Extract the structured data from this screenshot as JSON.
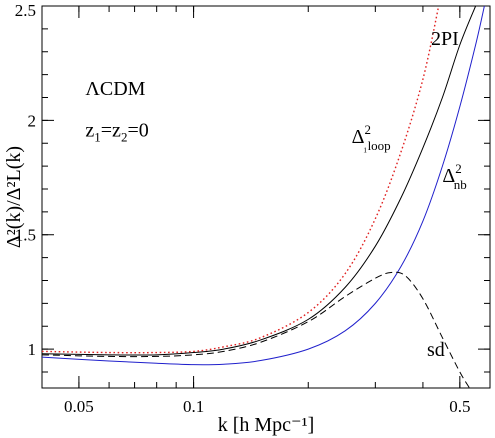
{
  "chart_data": {
    "type": "line",
    "title": "",
    "xlabel": "k [h Mpc⁻¹]",
    "ylabel": "Δ²(k)/Δ²L(k)",
    "xscale": "log",
    "xlim": [
      0.04,
      0.6
    ],
    "ylim": [
      0.83,
      2.5
    ],
    "grid": false,
    "legend": "none",
    "x_ticks": [
      {
        "value": 0.05,
        "label": "0.05"
      },
      {
        "value": 0.1,
        "label": "0.1"
      },
      {
        "value": 0.5,
        "label": "0.5"
      }
    ],
    "y_ticks": [
      {
        "value": 1,
        "label": "1"
      },
      {
        "value": 1.5,
        "label": "1.5"
      },
      {
        "value": 2,
        "label": "2"
      },
      {
        "value": 2.5,
        "label": "2.5"
      }
    ],
    "annotations": [
      {
        "text": "ΛCDM",
        "x": 0.052,
        "y": 2.11
      },
      {
        "text": "z₁=z₂=0",
        "x": 0.052,
        "y": 1.93
      },
      {
        "text": "2PI",
        "x": 0.42,
        "y": 2.33
      },
      {
        "text": "Δ²₁loop",
        "x": 0.26,
        "y": 1.9
      },
      {
        "text": "Δ²nb",
        "x": 0.45,
        "y": 1.73
      },
      {
        "text": "sd",
        "x": 0.41,
        "y": 0.97
      }
    ],
    "series": [
      {
        "label": "2PI",
        "color": "#000000",
        "dash": "solid",
        "points": [
          [
            0.04,
            0.98
          ],
          [
            0.06,
            0.975
          ],
          [
            0.08,
            0.975
          ],
          [
            0.1,
            0.985
          ],
          [
            0.12,
            1.0
          ],
          [
            0.15,
            1.04
          ],
          [
            0.2,
            1.13
          ],
          [
            0.25,
            1.27
          ],
          [
            0.3,
            1.45
          ],
          [
            0.35,
            1.66
          ],
          [
            0.4,
            1.88
          ],
          [
            0.45,
            2.1
          ],
          [
            0.5,
            2.33
          ],
          [
            0.55,
            2.5
          ]
        ]
      },
      {
        "label": "1loop",
        "color": "#e02020",
        "dash": "dotted",
        "points": [
          [
            0.04,
            0.99
          ],
          [
            0.06,
            0.985
          ],
          [
            0.08,
            0.985
          ],
          [
            0.1,
            0.99
          ],
          [
            0.12,
            1.01
          ],
          [
            0.15,
            1.05
          ],
          [
            0.2,
            1.16
          ],
          [
            0.25,
            1.33
          ],
          [
            0.3,
            1.57
          ],
          [
            0.35,
            1.86
          ],
          [
            0.4,
            2.18
          ],
          [
            0.44,
            2.5
          ]
        ]
      },
      {
        "label": "nb",
        "color": "#2020cc",
        "dash": "solid",
        "points": [
          [
            0.04,
            0.965
          ],
          [
            0.06,
            0.948
          ],
          [
            0.08,
            0.938
          ],
          [
            0.1,
            0.932
          ],
          [
            0.12,
            0.934
          ],
          [
            0.15,
            0.95
          ],
          [
            0.2,
            1.0
          ],
          [
            0.25,
            1.08
          ],
          [
            0.3,
            1.2
          ],
          [
            0.35,
            1.36
          ],
          [
            0.4,
            1.56
          ],
          [
            0.45,
            1.8
          ],
          [
            0.5,
            2.06
          ],
          [
            0.55,
            2.33
          ],
          [
            0.58,
            2.5
          ]
        ]
      },
      {
        "label": "sd",
        "color": "#000000",
        "dash": "dashed",
        "points": [
          [
            0.04,
            0.975
          ],
          [
            0.06,
            0.968
          ],
          [
            0.08,
            0.968
          ],
          [
            0.1,
            0.975
          ],
          [
            0.12,
            0.99
          ],
          [
            0.15,
            1.03
          ],
          [
            0.2,
            1.12
          ],
          [
            0.25,
            1.23
          ],
          [
            0.3,
            1.31
          ],
          [
            0.33,
            1.335
          ],
          [
            0.36,
            1.32
          ],
          [
            0.4,
            1.22
          ],
          [
            0.45,
            1.05
          ],
          [
            0.5,
            0.9
          ],
          [
            0.53,
            0.83
          ]
        ]
      }
    ]
  }
}
